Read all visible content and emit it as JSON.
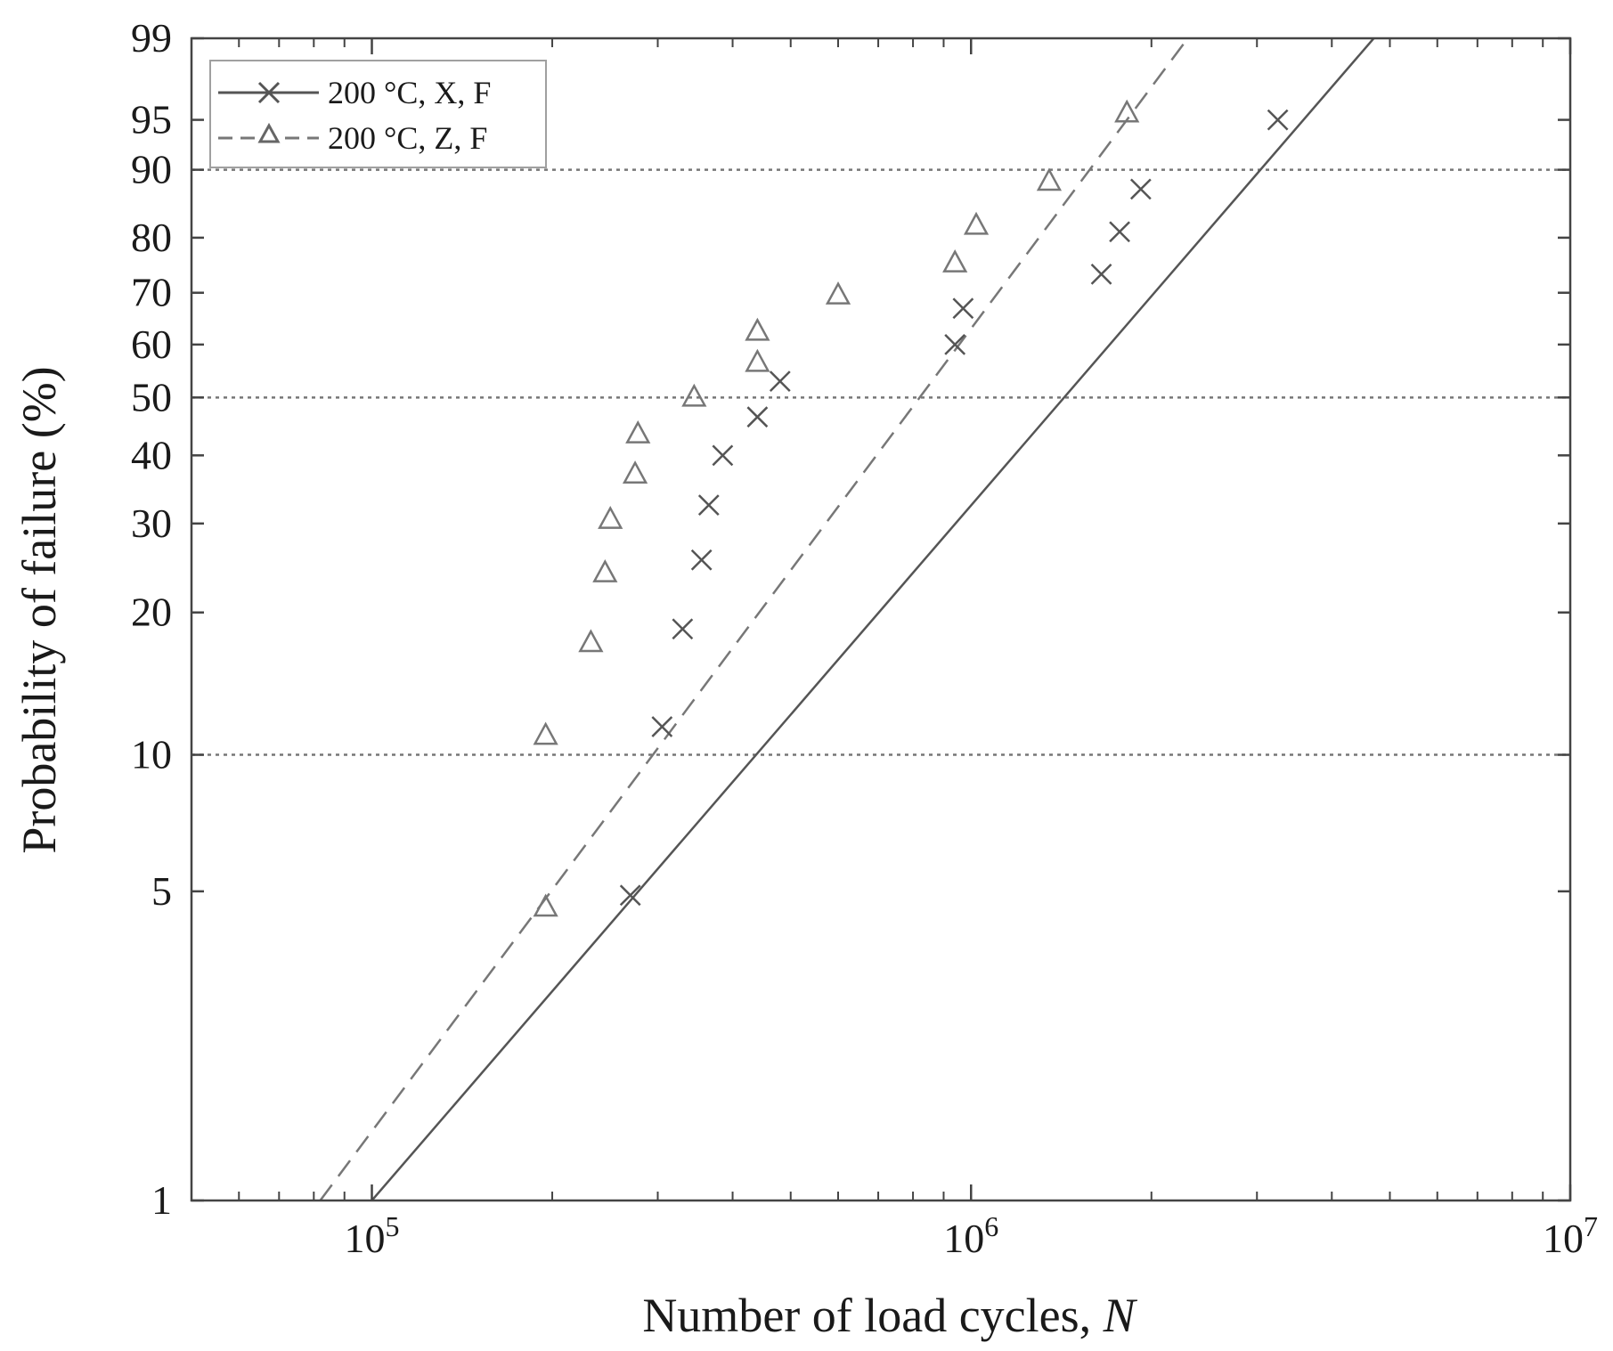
{
  "chart_data": {
    "type": "scatter",
    "xlabel": "Number of load cycles, ",
    "xlabel_italic": "N",
    "ylabel": "Probability of failure (%)",
    "x_scale": "log",
    "y_scale": "weibull-probability",
    "xlim": [
      50000,
      10000000
    ],
    "ylim": [
      1,
      99
    ],
    "x_ticks": [
      {
        "value": 100000,
        "base": "10",
        "exp": "5"
      },
      {
        "value": 1000000,
        "base": "10",
        "exp": "6"
      },
      {
        "value": 10000000,
        "base": "10",
        "exp": "7"
      }
    ],
    "y_ticks": [
      1,
      5,
      10,
      20,
      30,
      40,
      50,
      60,
      70,
      80,
      90,
      95,
      99
    ],
    "reference_lines_y": [
      10,
      50,
      90
    ],
    "legend": {
      "position": "top-left"
    },
    "series": [
      {
        "name": "200 °C, X, F",
        "marker": "x",
        "line_style": "solid",
        "color": "#555555",
        "points": [
          {
            "x": 270000,
            "y": 4.9
          },
          {
            "x": 305000,
            "y": 11.5
          },
          {
            "x": 330000,
            "y": 18.5
          },
          {
            "x": 355000,
            "y": 25.5
          },
          {
            "x": 365000,
            "y": 32.5
          },
          {
            "x": 385000,
            "y": 40
          },
          {
            "x": 440000,
            "y": 46.5
          },
          {
            "x": 480000,
            "y": 53
          },
          {
            "x": 940000,
            "y": 60
          },
          {
            "x": 970000,
            "y": 67
          },
          {
            "x": 1650000,
            "y": 73.5
          },
          {
            "x": 1770000,
            "y": 81
          },
          {
            "x": 1920000,
            "y": 87.5
          },
          {
            "x": 3250000,
            "y": 95
          }
        ],
        "fit_line": [
          {
            "x": 100000,
            "y": 1
          },
          {
            "x": 4700000,
            "y": 99
          }
        ]
      },
      {
        "name": "200 °C, Z, F",
        "marker": "triangle",
        "line_style": "dashed",
        "color": "#777777",
        "points": [
          {
            "x": 195000,
            "y": 4.6
          },
          {
            "x": 195000,
            "y": 11
          },
          {
            "x": 232000,
            "y": 17.3
          },
          {
            "x": 245000,
            "y": 24
          },
          {
            "x": 250000,
            "y": 30.5
          },
          {
            "x": 275000,
            "y": 37
          },
          {
            "x": 278000,
            "y": 43.5
          },
          {
            "x": 345000,
            "y": 50
          },
          {
            "x": 440000,
            "y": 56.5
          },
          {
            "x": 440000,
            "y": 62.5
          },
          {
            "x": 600000,
            "y": 69.5
          },
          {
            "x": 940000,
            "y": 75.5
          },
          {
            "x": 1020000,
            "y": 82
          },
          {
            "x": 1350000,
            "y": 88.5
          },
          {
            "x": 1820000,
            "y": 95.5
          }
        ],
        "fit_line": [
          {
            "x": 82000,
            "y": 1
          },
          {
            "x": 2300000,
            "y": 99
          }
        ]
      }
    ]
  }
}
